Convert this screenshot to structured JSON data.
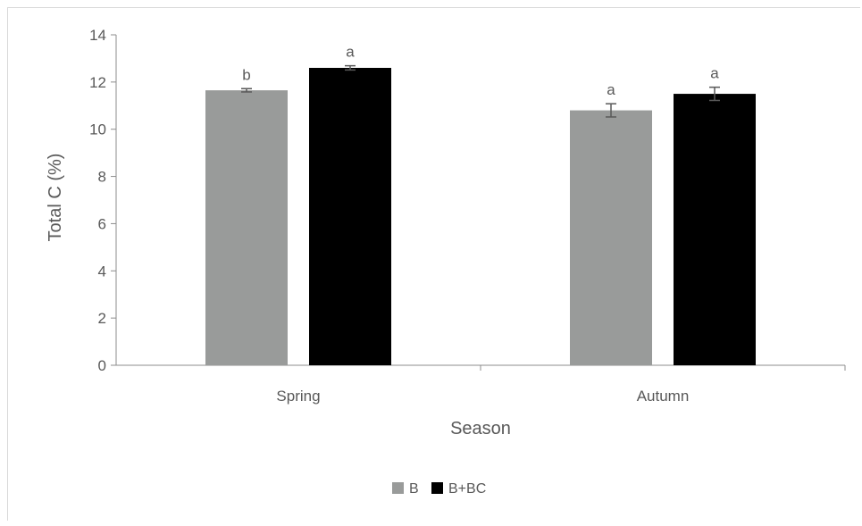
{
  "chart_data": {
    "type": "bar",
    "title": "",
    "xlabel": "Season",
    "ylabel": "Total C (%)",
    "ylim": [
      0,
      14
    ],
    "yticks": [
      0,
      2,
      4,
      6,
      8,
      10,
      12,
      14
    ],
    "categories": [
      "Spring",
      "Autumn"
    ],
    "series": [
      {
        "name": "B",
        "color": "#999b9a",
        "values": [
          11.65,
          10.8
        ],
        "errors": [
          0.07,
          0.28
        ],
        "labels": [
          "b",
          "a"
        ]
      },
      {
        "name": "B+BC",
        "color": "#000000",
        "values": [
          12.6,
          11.5
        ],
        "errors": [
          0.09,
          0.28
        ],
        "labels": [
          "a",
          "a"
        ]
      }
    ],
    "grid": false,
    "legend": "bottom-center",
    "axis_color": "#8c8c8c"
  }
}
